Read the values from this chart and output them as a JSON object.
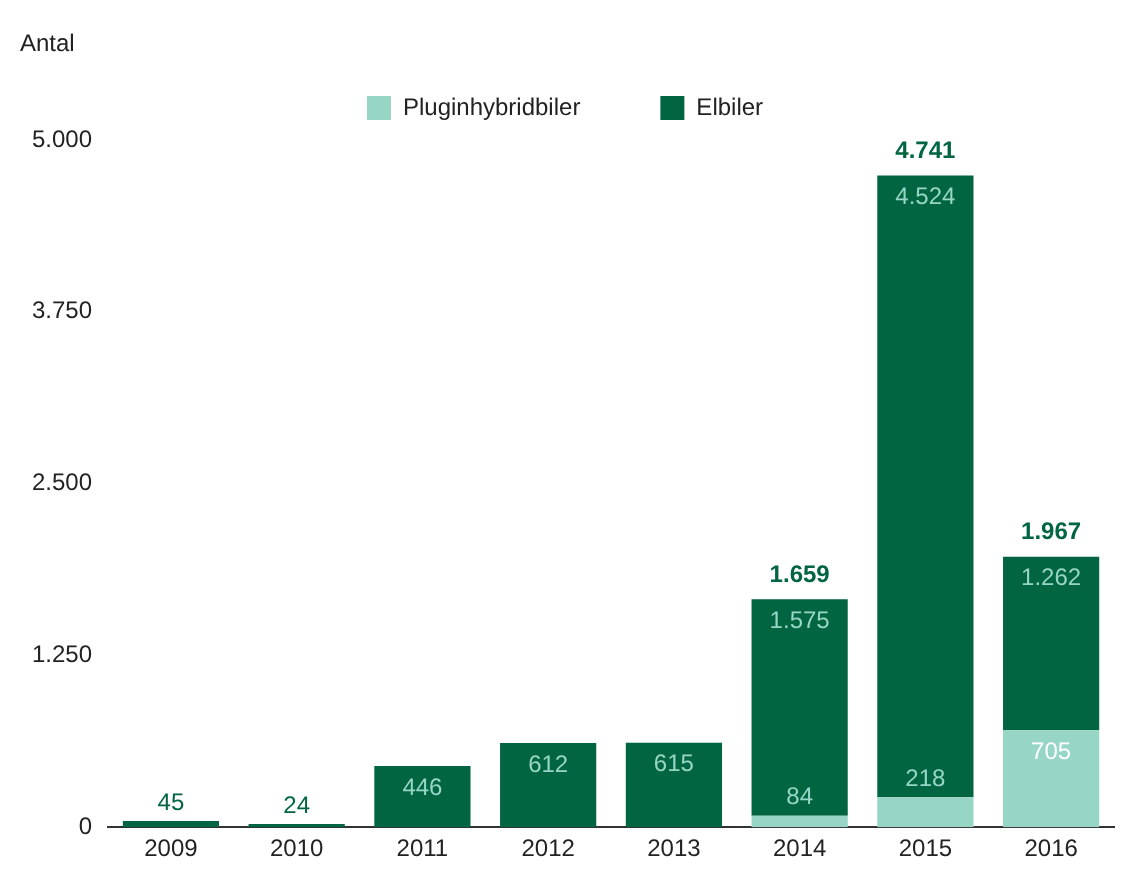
{
  "chart_data": {
    "type": "bar",
    "ylabel": "Antal",
    "categories": [
      "2009",
      "2010",
      "2011",
      "2012",
      "2013",
      "2014",
      "2015",
      "2016"
    ],
    "series": [
      {
        "name": "Pluginhybridbiler",
        "color": "#97d5c5",
        "values": [
          null,
          null,
          null,
          null,
          null,
          84,
          218,
          705
        ],
        "value_labels": [
          null,
          null,
          null,
          null,
          null,
          "84",
          "218",
          "705"
        ]
      },
      {
        "name": "Elbiler",
        "color": "#006540",
        "values": [
          45,
          24,
          446,
          612,
          615,
          1575,
          4524,
          1262
        ],
        "value_labels": [
          "45",
          "24",
          "446",
          "612",
          "615",
          "1.575",
          "4.524",
          "1.262"
        ]
      }
    ],
    "stacked": true,
    "totals": [
      null,
      null,
      null,
      null,
      null,
      "1.659",
      "4.741",
      "1.967"
    ],
    "ylim": [
      0,
      5000
    ],
    "yticks": [
      0,
      {
        "value": 1250,
        "label": "1.250"
      },
      {
        "value": 2500,
        "label": "2.500"
      },
      {
        "value": 3750,
        "label": "3.750"
      },
      {
        "value": 5000,
        "label": "5.000"
      }
    ],
    "grid": false,
    "legend": "top"
  }
}
